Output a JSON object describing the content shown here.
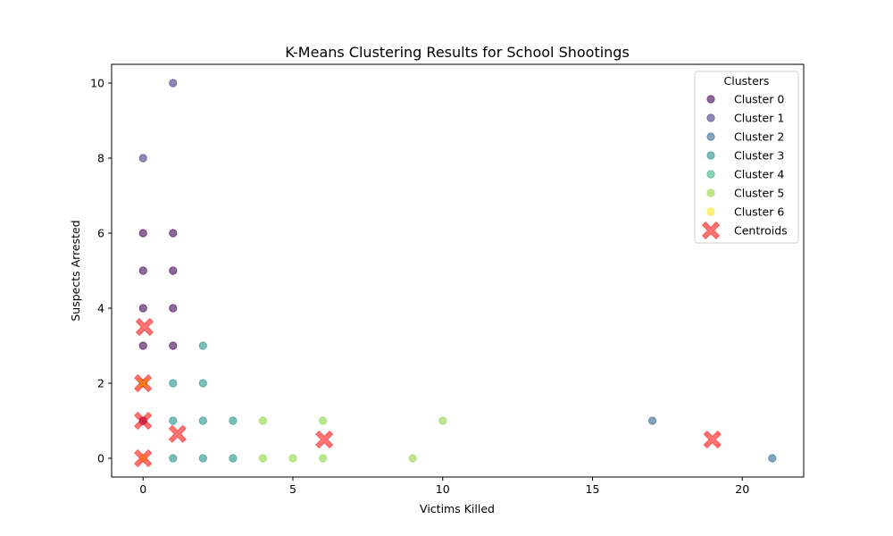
{
  "chart_data": {
    "type": "scatter",
    "title": "K-Means Clustering Results for School Shootings",
    "xlabel": "Victims Killed",
    "ylabel": "Suspects Arrested",
    "xlim": [
      -1.05,
      22.05
    ],
    "ylim": [
      -0.5,
      10.5
    ],
    "xticks": [
      0,
      5,
      10,
      15,
      20
    ],
    "yticks": [
      0,
      2,
      4,
      6,
      8,
      10
    ],
    "grid": false,
    "legend": {
      "title": "Clusters",
      "position": "upper right"
    },
    "series": [
      {
        "name": "Cluster 0",
        "color": "#440154",
        "points": [
          [
            0,
            3
          ],
          [
            0,
            4
          ],
          [
            0,
            5
          ],
          [
            0,
            6
          ],
          [
            1,
            3
          ],
          [
            1,
            4
          ],
          [
            1,
            5
          ],
          [
            1,
            6
          ],
          [
            0,
            1
          ]
        ]
      },
      {
        "name": "Cluster 1",
        "color": "#443983",
        "points": [
          [
            1,
            10
          ],
          [
            0,
            8
          ]
        ]
      },
      {
        "name": "Cluster 2",
        "color": "#31688e",
        "points": [
          [
            17,
            1
          ],
          [
            21,
            0
          ]
        ]
      },
      {
        "name": "Cluster 3",
        "color": "#21918c",
        "points": [
          [
            1,
            0
          ],
          [
            1,
            1
          ],
          [
            1,
            2
          ],
          [
            2,
            0
          ],
          [
            2,
            1
          ],
          [
            2,
            2
          ],
          [
            2,
            3
          ],
          [
            3,
            0
          ],
          [
            3,
            1
          ]
        ]
      },
      {
        "name": "Cluster 4",
        "color": "#35b779",
        "points": [
          [
            0,
            2
          ]
        ]
      },
      {
        "name": "Cluster 5",
        "color": "#90d743",
        "points": [
          [
            4,
            0
          ],
          [
            4,
            1
          ],
          [
            5,
            0
          ],
          [
            6,
            0
          ],
          [
            6,
            1
          ],
          [
            9,
            0
          ],
          [
            10,
            1
          ]
        ]
      },
      {
        "name": "Cluster 6",
        "color": "#fde725",
        "points": [
          [
            0,
            0
          ]
        ]
      }
    ],
    "centroids": {
      "name": "Centroids",
      "color": "#ff0000",
      "points": [
        [
          0.05,
          3.5
        ],
        [
          0,
          2
        ],
        [
          0,
          1
        ],
        [
          0,
          0
        ],
        [
          1.15,
          0.65
        ],
        [
          6.05,
          0.5
        ],
        [
          19,
          0.5
        ]
      ]
    },
    "highlight_point": {
      "color": "#ff7f0e",
      "point": [
        0,
        2
      ]
    }
  }
}
